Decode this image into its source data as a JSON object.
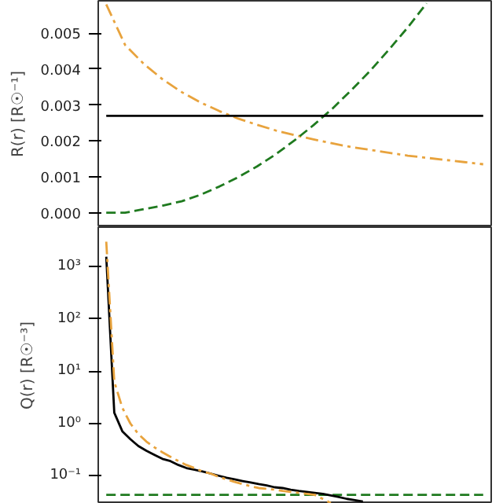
{
  "chart_data": [
    {
      "type": "line",
      "ylabel": "R(r) [R☉⁻¹]",
      "tick_labels": "y",
      "grid": false,
      "categories": [
        null,
        null,
        null,
        null,
        null,
        null,
        null,
        null,
        null,
        null,
        null,
        null,
        null,
        null,
        null,
        null,
        null,
        null,
        null,
        null,
        null
      ],
      "ylim": [
        -0.0004,
        0.0059
      ],
      "yticks": [
        {
          "value": 0,
          "label": "0.000"
        },
        {
          "value": 0.001,
          "label": "0.001"
        },
        {
          "value": 0.002,
          "label": "0.002"
        },
        {
          "value": 0.003,
          "label": "0.003"
        },
        {
          "value": 0.004,
          "label": "0.004"
        },
        {
          "value": 0.005,
          "label": "0.005"
        }
      ],
      "series": [
        {
          "color": "#e8a33d",
          "line_style": "dashdot",
          "values": [
            0.0058,
            0.00467,
            0.00414,
            0.00371,
            0.00336,
            0.00307,
            0.00283,
            0.00262,
            0.00245,
            0.00229,
            0.00216,
            0.00204,
            0.00193,
            0.00183,
            0.00175,
            0.00167,
            0.00159,
            0.00153,
            0.00147,
            0.00141,
            0.00135
          ]
        },
        {
          "color": "#1f7a1f",
          "line_style": "dashed",
          "values": [
            0,
            0,
            0.0001,
            0.0002,
            0.00032,
            0.0005,
            0.00073,
            0.00099,
            0.00129,
            0.00163,
            0.00202,
            0.00244,
            0.0029,
            0.00341,
            0.00395,
            0.00454,
            0.00516,
            0.00583,
            null,
            null,
            null
          ]
        },
        {
          "color": "#000000",
          "line_style": "solid",
          "values": [
            0.0027,
            0.0027,
            0.0027,
            0.0027,
            0.0027,
            0.0027,
            0.0027,
            0.0027,
            0.0027,
            0.0027,
            0.0027,
            0.0027,
            0.0027,
            0.0027,
            0.0027,
            0.0027,
            0.0027,
            0.0027,
            0.0027,
            0.0027,
            0.0027
          ]
        }
      ]
    },
    {
      "type": "line",
      "ylabel": "Q(r) [R☉⁻³]",
      "tick_labels": "y",
      "grid": false,
      "log": "y",
      "categories": [
        null,
        null,
        null,
        null,
        null,
        null,
        null,
        null,
        null,
        null,
        null,
        null,
        null,
        null,
        null,
        null,
        null,
        null,
        null,
        null,
        null,
        null,
        null,
        null,
        null,
        null,
        null,
        null,
        null,
        null,
        null,
        null,
        null,
        null,
        null,
        null,
        null,
        null,
        null,
        null,
        null,
        null,
        null,
        null,
        null,
        null,
        null,
        null
      ],
      "ylim": [
        0.029,
        5700
      ],
      "yticks": [
        {
          "value": 0.1,
          "label": "10⁻¹"
        },
        {
          "value": 1,
          "label": "10⁰"
        },
        {
          "value": 10,
          "label": "10¹"
        },
        {
          "value": 100,
          "label": "10²"
        },
        {
          "value": 1000,
          "label": "10³"
        }
      ],
      "series": [
        {
          "color": "#1f7a1f",
          "line_style": "dashed",
          "values": [
            0.043,
            0.043,
            0.043,
            0.043,
            0.043,
            0.043,
            0.043,
            0.043,
            0.043,
            0.043,
            0.043,
            0.043,
            0.043,
            0.043,
            0.043,
            0.043,
            0.043,
            0.043,
            0.043,
            0.043,
            0.043,
            0.043,
            0.043,
            0.043,
            0.043,
            0.043,
            0.043,
            0.043,
            0.043,
            0.043,
            0.043,
            0.043,
            0.043,
            0.043,
            0.043,
            0.043,
            0.043,
            0.043,
            0.043,
            0.043,
            0.043,
            0.043,
            0.043,
            0.043,
            0.043,
            0.043,
            0.043,
            0.043
          ]
        },
        {
          "color": "#000000",
          "line_style": "solid",
          "values": [
            1550,
            1.6,
            0.71,
            0.5,
            0.37,
            0.3,
            0.25,
            0.21,
            0.19,
            0.16,
            0.14,
            0.13,
            0.12,
            0.11,
            0.1,
            0.091,
            0.085,
            0.079,
            0.074,
            0.069,
            0.065,
            0.06,
            0.058,
            0.054,
            0.051,
            0.049,
            0.047,
            0.045,
            0.042,
            0.039,
            0.036,
            0.034,
            0.032,
            null,
            null,
            null,
            null,
            null,
            null,
            null,
            null,
            null,
            null,
            null,
            null,
            null,
            null,
            null
          ]
        },
        {
          "color": "#e8a33d",
          "line_style": "dashdot",
          "values": [
            3000,
            6.3,
            2.0,
            1.0,
            0.63,
            0.45,
            0.35,
            0.28,
            0.23,
            0.19,
            0.16,
            0.14,
            0.12,
            0.11,
            0.095,
            0.085,
            0.076,
            0.069,
            0.063,
            0.058,
            0.056,
            0.054,
            0.051,
            0.049,
            0.047,
            0.045,
            0.043,
            0.036,
            0.03,
            null,
            null,
            null,
            null,
            null,
            null,
            null,
            null,
            null,
            null,
            null,
            null,
            null,
            null,
            null,
            null,
            null,
            null,
            null
          ]
        }
      ]
    }
  ]
}
